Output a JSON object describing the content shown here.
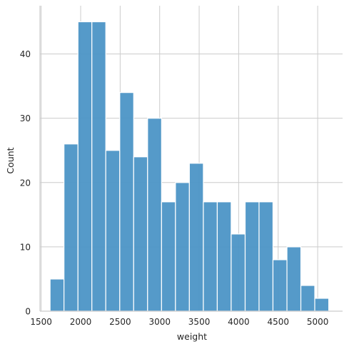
{
  "chart_data": {
    "type": "bar",
    "subtype": "histogram",
    "xlabel": "weight",
    "ylabel": "Count",
    "xlim": [
      1485,
      5315
    ],
    "ylim": [
      0,
      47.5
    ],
    "xticks": [
      1500,
      2000,
      2500,
      3000,
      3500,
      4000,
      4500,
      5000
    ],
    "yticks": [
      0,
      10,
      20,
      30,
      40
    ],
    "grid": true,
    "bar_color": "#4C95C6",
    "bins": [
      {
        "x0": 1613,
        "x1": 1789,
        "count": 5
      },
      {
        "x0": 1789,
        "x1": 1966,
        "count": 26
      },
      {
        "x0": 1966,
        "x1": 2142,
        "count": 45
      },
      {
        "x0": 2142,
        "x1": 2318,
        "count": 45
      },
      {
        "x0": 2318,
        "x1": 2495,
        "count": 25
      },
      {
        "x0": 2495,
        "x1": 2671,
        "count": 34
      },
      {
        "x0": 2671,
        "x1": 2847,
        "count": 24
      },
      {
        "x0": 2847,
        "x1": 3024,
        "count": 30
      },
      {
        "x0": 3024,
        "x1": 3200,
        "count": 17
      },
      {
        "x0": 3200,
        "x1": 3376,
        "count": 20
      },
      {
        "x0": 3376,
        "x1": 3553,
        "count": 23
      },
      {
        "x0": 3553,
        "x1": 3729,
        "count": 17
      },
      {
        "x0": 3729,
        "x1": 3905,
        "count": 17
      },
      {
        "x0": 3905,
        "x1": 4082,
        "count": 12
      },
      {
        "x0": 4082,
        "x1": 4258,
        "count": 17
      },
      {
        "x0": 4258,
        "x1": 4434,
        "count": 17
      },
      {
        "x0": 4434,
        "x1": 4611,
        "count": 8
      },
      {
        "x0": 4611,
        "x1": 4787,
        "count": 10
      },
      {
        "x0": 4787,
        "x1": 4963,
        "count": 4
      },
      {
        "x0": 4963,
        "x1": 5140,
        "count": 2
      }
    ]
  }
}
